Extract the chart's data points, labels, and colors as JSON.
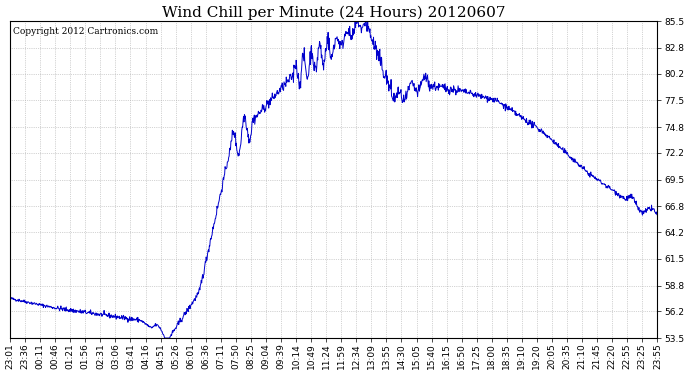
{
  "title": "Wind Chill per Minute (24 Hours) 20120607",
  "copyright_text": "Copyright 2012 Cartronics.com",
  "y_ticks": [
    53.5,
    56.2,
    58.8,
    61.5,
    64.2,
    66.8,
    69.5,
    72.2,
    74.8,
    77.5,
    80.2,
    82.8,
    85.5
  ],
  "ylim_min": 53.5,
  "ylim_max": 85.5,
  "line_color": "#0000CC",
  "background_color": "#ffffff",
  "plot_bg_color": "#ffffff",
  "grid_color": "#aaaaaa",
  "x_tick_labels": [
    "23:01",
    "23:36",
    "00:11",
    "00:46",
    "01:21",
    "01:56",
    "02:31",
    "03:06",
    "03:41",
    "04:16",
    "04:51",
    "05:26",
    "06:01",
    "06:36",
    "07:11",
    "07:50",
    "08:25",
    "09:04",
    "09:39",
    "10:14",
    "10:49",
    "11:24",
    "11:59",
    "12:34",
    "13:09",
    "13:55",
    "14:30",
    "15:05",
    "15:40",
    "16:15",
    "16:50",
    "17:25",
    "18:00",
    "18:35",
    "19:10",
    "19:20",
    "20:05",
    "20:35",
    "21:10",
    "21:45",
    "22:20",
    "22:55",
    "23:25",
    "23:55"
  ],
  "title_fontsize": 11,
  "copyright_fontsize": 6.5,
  "tick_fontsize": 6.5,
  "figwidth": 6.9,
  "figheight": 3.75,
  "dpi": 100
}
